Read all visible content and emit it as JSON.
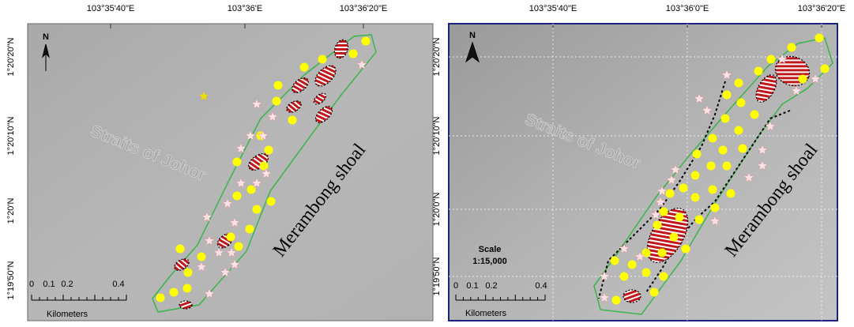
{
  "panels": [
    {
      "lon_labels": [
        "103°35'40\"E",
        "103°36'E",
        "103°36'20\"E"
      ],
      "lat_labels": [
        "1°20'20\"N",
        "1°20'10\"N",
        "1°20'N",
        "1°19'50\"N"
      ],
      "north": "N",
      "water_label": "Straits of Johor",
      "shoal_label": "Merambong shoal",
      "scale": {
        "ticks": [
          "0",
          "0.1",
          "0.2",
          "0.4"
        ],
        "unit": "Kilometers"
      }
    },
    {
      "lon_labels": [
        "103°35'40\"E",
        "103°36'0\"E",
        "103°36'20\"E"
      ],
      "lat_labels": [
        "1°20'20\"N",
        "1°20'10\"N",
        "1°20'0\"N",
        "1°19'50\"N"
      ],
      "north": "N",
      "water_label": "Straits of Johor",
      "shoal_label": "Merambong shoal",
      "scale": {
        "title": "Scale",
        "ratio": "1:15,000",
        "ticks": [
          "0",
          "0.1",
          "0.2",
          "0.4"
        ],
        "unit": "Kilometers"
      }
    }
  ]
}
